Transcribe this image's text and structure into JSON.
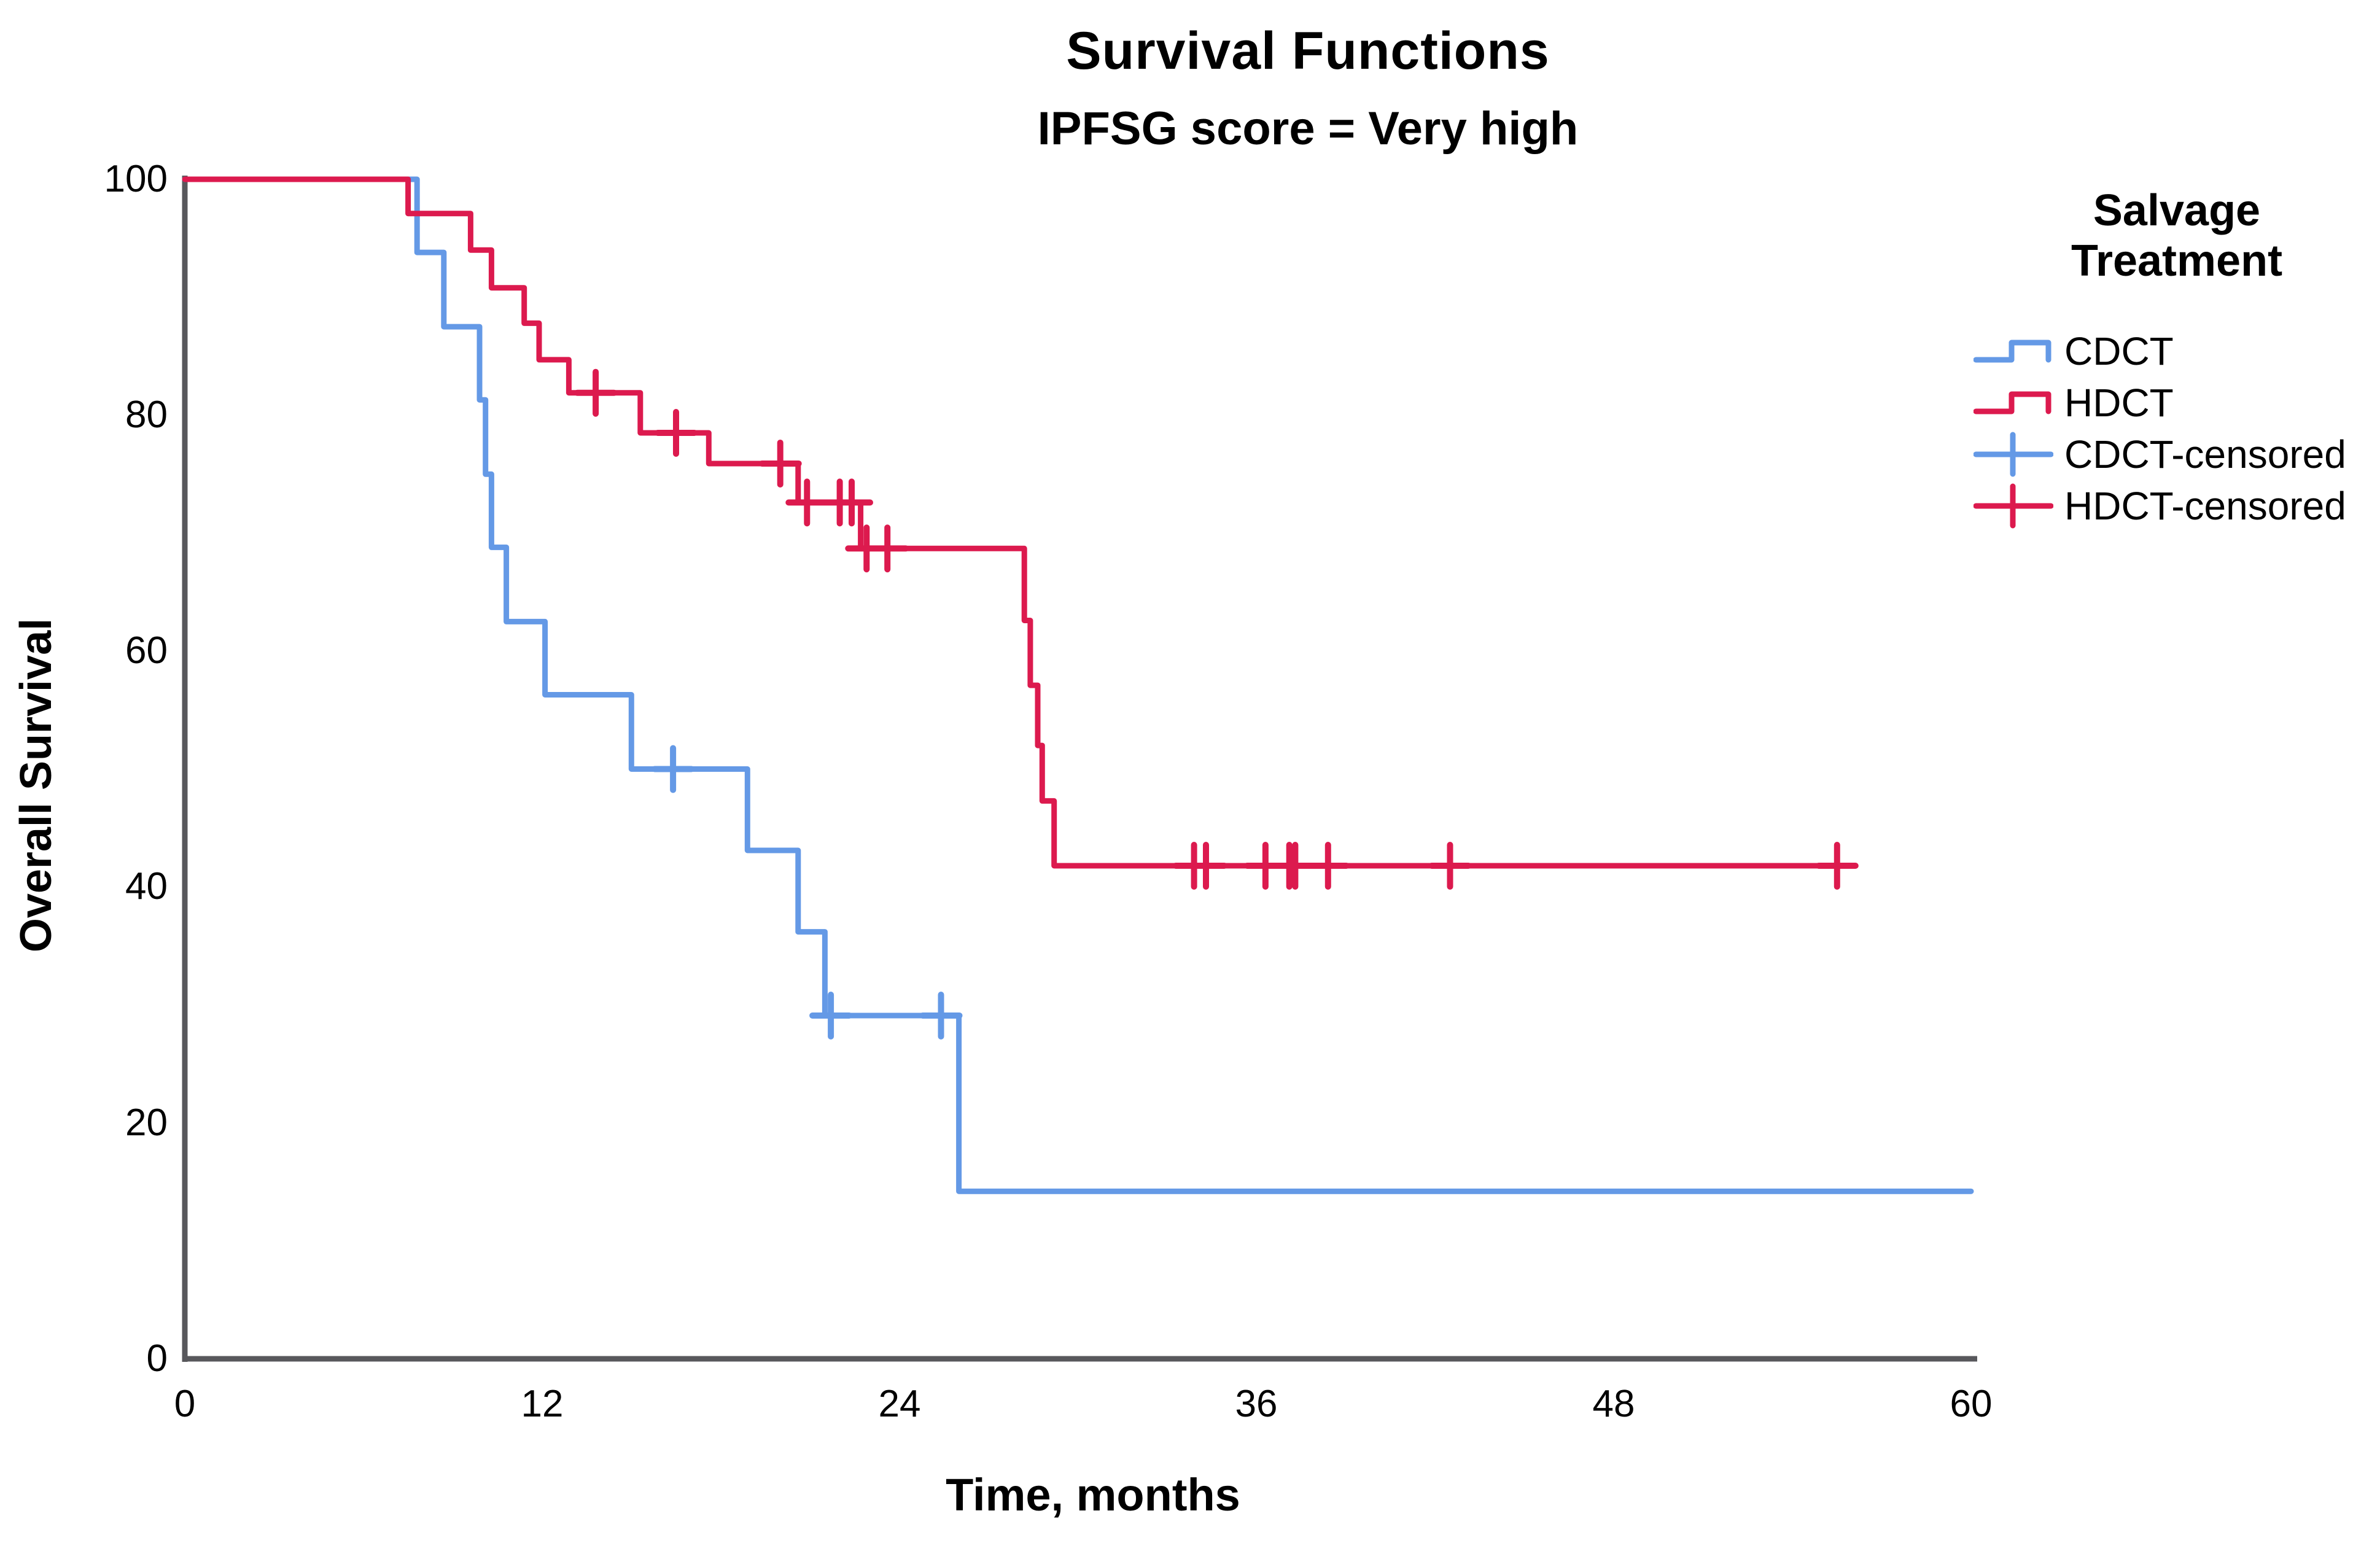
{
  "title": "Survival Functions",
  "subtitle": "IPFSG score = Very high",
  "axes": {
    "x_label": "Time, months",
    "y_label": "Overall Survival"
  },
  "legend": {
    "title_lines": [
      "Salvage",
      "Treatment"
    ],
    "items": [
      {
        "label": "CDCT",
        "color": "#6499E6",
        "marker": "step-line"
      },
      {
        "label": "HDCT",
        "color": "#DC1A4E",
        "marker": "step-line"
      },
      {
        "label": "CDCT-censored",
        "color": "#6499E6",
        "marker": "censor-plus"
      },
      {
        "label": "HDCT-censored",
        "color": "#DC1A4E",
        "marker": "censor-plus"
      }
    ]
  },
  "colors": {
    "cdct": "#6499E6",
    "hdct": "#DC1A4E",
    "axis": "#58585c",
    "text": "#000000",
    "background": "#ffffff"
  },
  "chart_data": {
    "type": "line",
    "variant": "kaplan-meier-step",
    "title": "Survival Functions",
    "subtitle": "IPFSG score = Very high",
    "xlabel": "Time, months",
    "ylabel": "Overall Survival",
    "xlim": [
      0,
      60
    ],
    "ylim": [
      0,
      100
    ],
    "x_ticks": [
      "0",
      "12",
      "24",
      "36",
      "48",
      "60"
    ],
    "y_ticks": [
      "0",
      "20",
      "40",
      "60",
      "80",
      "100"
    ],
    "grid": false,
    "legend_position": "right",
    "series": [
      {
        "name": "CDCT",
        "color": "#6499E6",
        "end_t": 60,
        "steps": [
          [
            0,
            100
          ],
          [
            7.8,
            93.8
          ],
          [
            8.7,
            87.5
          ],
          [
            9.9,
            81.3
          ],
          [
            10.1,
            75.0
          ],
          [
            10.3,
            68.8
          ],
          [
            10.8,
            62.5
          ],
          [
            12.1,
            56.3
          ],
          [
            15.0,
            50.0
          ],
          [
            18.9,
            43.1
          ],
          [
            20.6,
            36.2
          ],
          [
            21.5,
            29.1
          ],
          [
            26.0,
            14.2
          ]
        ],
        "censored": [
          [
            16.4,
            50.0
          ],
          [
            21.7,
            29.1
          ],
          [
            25.4,
            29.1
          ]
        ]
      },
      {
        "name": "HDCT",
        "color": "#DC1A4E",
        "end_t": 55.8,
        "steps": [
          [
            0,
            100
          ],
          [
            7.5,
            97.1
          ],
          [
            9.6,
            94.0
          ],
          [
            10.3,
            90.8
          ],
          [
            11.4,
            87.8
          ],
          [
            11.9,
            84.7
          ],
          [
            12.9,
            81.9
          ],
          [
            15.3,
            78.5
          ],
          [
            17.6,
            75.9
          ],
          [
            20.6,
            72.6
          ],
          [
            22.7,
            68.7
          ],
          [
            28.2,
            62.6
          ],
          [
            28.4,
            57.1
          ],
          [
            28.65,
            52.0
          ],
          [
            28.8,
            47.3
          ],
          [
            29.2,
            41.8
          ]
        ],
        "censored": [
          [
            13.8,
            81.9
          ],
          [
            16.5,
            78.5
          ],
          [
            20.0,
            75.9
          ],
          [
            20.9,
            72.6
          ],
          [
            22.0,
            72.6
          ],
          [
            22.4,
            72.6
          ],
          [
            22.9,
            68.7
          ],
          [
            23.6,
            68.7
          ],
          [
            33.9,
            41.8
          ],
          [
            34.3,
            41.8
          ],
          [
            36.3,
            41.8
          ],
          [
            37.1,
            41.8
          ],
          [
            37.3,
            41.8
          ],
          [
            38.4,
            41.8
          ],
          [
            42.5,
            41.8
          ],
          [
            55.5,
            41.8
          ]
        ]
      }
    ]
  }
}
